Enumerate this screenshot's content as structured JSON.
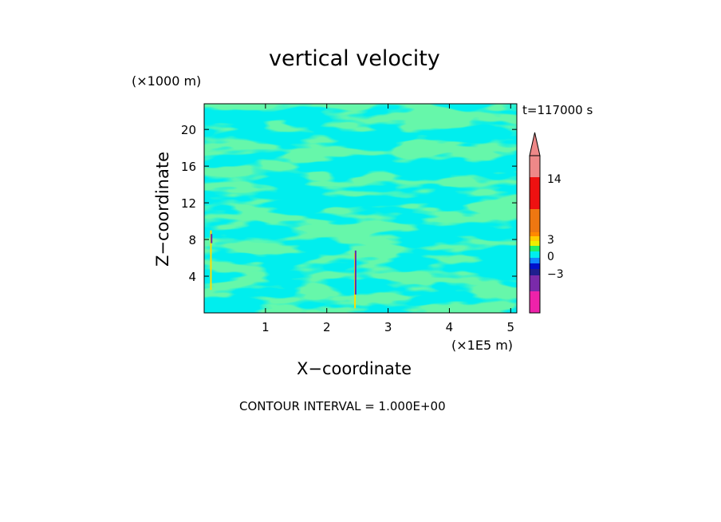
{
  "chart_data": {
    "type": "heatmap",
    "title": "vertical velocity",
    "xlabel": "X−coordinate",
    "ylabel": "Z−coordinate",
    "x_unit": "(×1E5 m)",
    "y_unit": "(×1000 m)",
    "time_label": "t=117000 s",
    "footer": "CONTOUR INTERVAL = 1.000E+00",
    "xlim": [
      0,
      5.1
    ],
    "ylim": [
      0,
      22.8
    ],
    "x_ticks": [
      1,
      2,
      3,
      4,
      5
    ],
    "y_ticks": [
      4,
      8,
      12,
      16,
      20
    ],
    "x_tick_labels": [
      "1",
      "2",
      "3",
      "4",
      "5"
    ],
    "y_tick_labels": [
      "4",
      "8",
      "12",
      "16",
      "20"
    ],
    "field_colors": {
      "background": "#00eeee",
      "contour_fill": "#22ee66",
      "updraft": "#ffdd00",
      "downdraft": "#6a2aa8"
    },
    "colorbar": {
      "levels": [
        {
          "value": "-6",
          "color": "#ee22aa"
        },
        {
          "value": "-4",
          "color": "#7a2aaa"
        },
        {
          "value": "-3",
          "color": "#1f1f8f"
        },
        {
          "value": "-2",
          "color": "#0011cc"
        },
        {
          "value": "-1",
          "color": "#1188ff"
        },
        {
          "value": "0",
          "color": "#00eeee"
        },
        {
          "value": "1",
          "color": "#22ee66"
        },
        {
          "value": "2",
          "color": "#eeee00"
        },
        {
          "value": "3",
          "color": "#ffcc00"
        },
        {
          "value": "4",
          "color": "#ff8800"
        },
        {
          "value": "8",
          "color": "#ee7711"
        },
        {
          "value": "14",
          "color": "#ee1111"
        },
        {
          "value": "18",
          "color": "#ee8888"
        }
      ],
      "tick_labels": [
        "14",
        "3",
        "0",
        "−3"
      ]
    }
  }
}
